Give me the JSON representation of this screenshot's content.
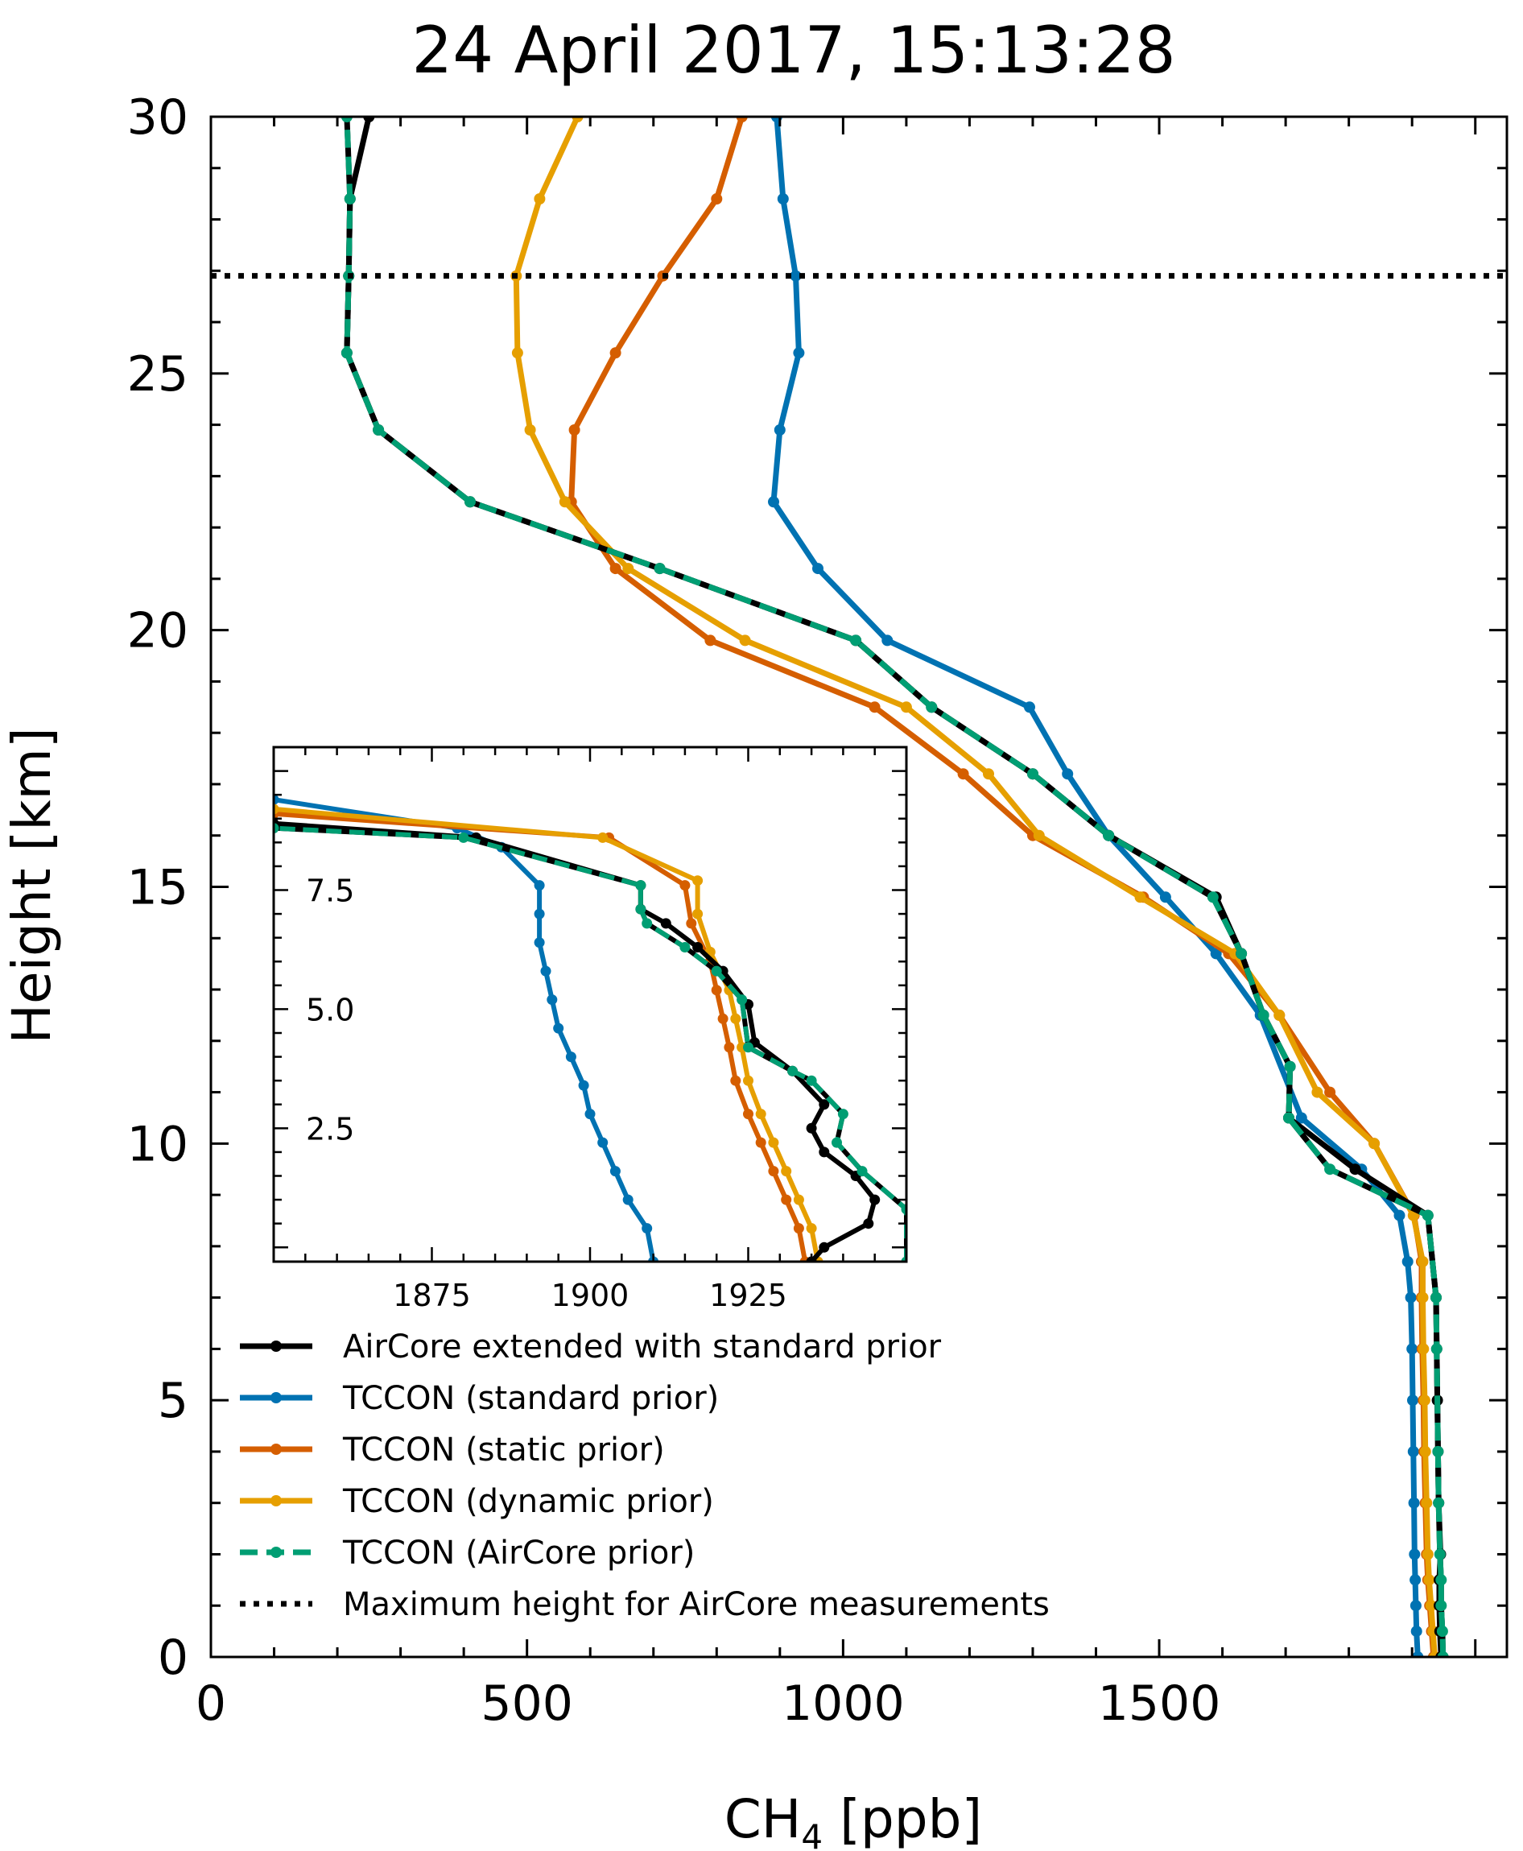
{
  "chart_data": {
    "type": "line",
    "title": "24 April 2017, 15:13:28",
    "xlabel_main": "CH",
    "xlabel_sub": "4",
    "xlabel_unit": " [ppb]",
    "ylabel": "Height [km]",
    "xlim": [
      0,
      2050
    ],
    "ylim": [
      0,
      30
    ],
    "xticks": [
      "0",
      "500",
      "1000",
      "1500"
    ],
    "xtick_values": [
      0,
      500,
      1000,
      1500
    ],
    "yticks": [
      "0",
      "5",
      "10",
      "15",
      "20",
      "25",
      "30"
    ],
    "ytick_values": [
      0,
      5,
      10,
      15,
      20,
      25,
      30
    ],
    "max_height_line": 26.9,
    "legend_position": "lower-left",
    "colors": {
      "aircore": "#000000",
      "standard": "#0072B2",
      "static": "#D55E00",
      "dynamic": "#E69F00",
      "aircore_prior": "#009E73"
    },
    "series": [
      {
        "id": "aircore",
        "name": "AirCore extended with standard prior",
        "style": "solid",
        "points": [
          [
            1946,
            0
          ],
          [
            1944,
            0.5
          ],
          [
            1943,
            1
          ],
          [
            1943,
            1.5
          ],
          [
            1945,
            2
          ],
          [
            1942,
            3
          ],
          [
            1941,
            4
          ],
          [
            1940,
            5
          ],
          [
            1939,
            6
          ],
          [
            1938,
            7
          ],
          [
            1925,
            8.6
          ],
          [
            1810,
            9.5
          ],
          [
            1705,
            10.5
          ],
          [
            1707,
            11.5
          ],
          [
            1665,
            12.5
          ],
          [
            1630,
            13.7
          ],
          [
            1590,
            14.8
          ],
          [
            1420,
            16
          ],
          [
            1300,
            17.2
          ],
          [
            1140,
            18.5
          ],
          [
            1020,
            19.8
          ],
          [
            710,
            21.2
          ],
          [
            410,
            22.5
          ],
          [
            265,
            23.9
          ],
          [
            215,
            25.4
          ],
          [
            218,
            26.9
          ],
          [
            220,
            28.4
          ],
          [
            250,
            30
          ]
        ]
      },
      {
        "id": "standard",
        "name": "TCCON (standard prior)",
        "style": "solid",
        "points": [
          [
            1909,
            0
          ],
          [
            1907,
            0.5
          ],
          [
            1906,
            1
          ],
          [
            1905,
            1.5
          ],
          [
            1904,
            2
          ],
          [
            1903,
            3
          ],
          [
            1902,
            4
          ],
          [
            1901,
            5
          ],
          [
            1900,
            6
          ],
          [
            1898,
            7
          ],
          [
            1893,
            7.7
          ],
          [
            1880,
            8.6
          ],
          [
            1820,
            9.5
          ],
          [
            1725,
            10.5
          ],
          [
            1660,
            12.5
          ],
          [
            1590,
            13.7
          ],
          [
            1510,
            14.8
          ],
          [
            1420,
            16
          ],
          [
            1355,
            17.2
          ],
          [
            1295,
            18.5
          ],
          [
            1070,
            19.8
          ],
          [
            960,
            21.2
          ],
          [
            890,
            22.5
          ],
          [
            900,
            23.9
          ],
          [
            930,
            25.4
          ],
          [
            925,
            26.9
          ],
          [
            905,
            28.4
          ],
          [
            895,
            30
          ]
        ]
      },
      {
        "id": "static",
        "name": "TCCON (static prior)",
        "style": "solid",
        "points": [
          [
            1934,
            0
          ],
          [
            1931,
            0.5
          ],
          [
            1928,
            1
          ],
          [
            1925,
            1.5
          ],
          [
            1923,
            2
          ],
          [
            1921,
            3
          ],
          [
            1919,
            4
          ],
          [
            1918,
            5
          ],
          [
            1916,
            6
          ],
          [
            1915,
            7
          ],
          [
            1915,
            7.7
          ],
          [
            1903,
            8.6
          ],
          [
            1840,
            10.0
          ],
          [
            1770,
            11
          ],
          [
            1690,
            12.5
          ],
          [
            1610,
            13.7
          ],
          [
            1475,
            14.8
          ],
          [
            1300,
            16
          ],
          [
            1190,
            17.2
          ],
          [
            1050,
            18.5
          ],
          [
            790,
            19.8
          ],
          [
            640,
            21.2
          ],
          [
            570,
            22.5
          ],
          [
            575,
            23.9
          ],
          [
            640,
            25.4
          ],
          [
            715,
            26.9
          ],
          [
            800,
            28.4
          ],
          [
            840,
            30
          ]
        ]
      },
      {
        "id": "dynamic",
        "name": "TCCON (dynamic prior)",
        "style": "solid",
        "points": [
          [
            1936,
            0
          ],
          [
            1933,
            0.5
          ],
          [
            1930,
            1
          ],
          [
            1927,
            1.5
          ],
          [
            1925,
            2
          ],
          [
            1923,
            3
          ],
          [
            1921,
            4
          ],
          [
            1920,
            5
          ],
          [
            1918,
            6
          ],
          [
            1917,
            7
          ],
          [
            1917,
            7.7
          ],
          [
            1902,
            8.6
          ],
          [
            1840,
            10.0
          ],
          [
            1750,
            11
          ],
          [
            1690,
            12.5
          ],
          [
            1620,
            13.7
          ],
          [
            1470,
            14.8
          ],
          [
            1310,
            16
          ],
          [
            1230,
            17.2
          ],
          [
            1100,
            18.5
          ],
          [
            845,
            19.8
          ],
          [
            660,
            21.2
          ],
          [
            560,
            22.5
          ],
          [
            505,
            23.9
          ],
          [
            485,
            25.4
          ],
          [
            483,
            26.9
          ],
          [
            520,
            28.4
          ],
          [
            580,
            30
          ]
        ]
      },
      {
        "id": "aircore_prior",
        "name": "TCCON (AirCore prior)",
        "style": "dashed",
        "points": [
          [
            1949,
            0
          ],
          [
            1948,
            0.5
          ],
          [
            1946,
            1
          ],
          [
            1946,
            1.5
          ],
          [
            1944,
            2
          ],
          [
            1942,
            3
          ],
          [
            1941,
            4
          ],
          [
            1939,
            6
          ],
          [
            1938,
            7
          ],
          [
            1925,
            8.6
          ],
          [
            1770,
            9.5
          ],
          [
            1705,
            10.5
          ],
          [
            1707,
            11.5
          ],
          [
            1665,
            12.5
          ],
          [
            1630,
            13.7
          ],
          [
            1585,
            14.8
          ],
          [
            1420,
            16
          ],
          [
            1300,
            17.2
          ],
          [
            1140,
            18.5
          ],
          [
            1020,
            19.8
          ],
          [
            710,
            21.2
          ],
          [
            410,
            22.5
          ],
          [
            265,
            23.9
          ],
          [
            215,
            25.4
          ],
          [
            218,
            26.9
          ],
          [
            220,
            28.4
          ],
          [
            215,
            30
          ]
        ]
      },
      {
        "id": "maxheight",
        "name": "Maximum height for AirCore measurements",
        "style": "dotted",
        "points": []
      }
    ],
    "inset": {
      "xlim": [
        1850,
        1950
      ],
      "ylim": [
        -0.3,
        10.5
      ],
      "xticks": [
        "1875",
        "1900",
        "1925"
      ],
      "xtick_values": [
        1875,
        1900,
        1925
      ],
      "yticks": [
        "2.5",
        "5.0",
        "7.5"
      ],
      "ytick_values": [
        2.5,
        5.0,
        7.5
      ],
      "series": [
        {
          "id": "aircore",
          "points": [
            [
              1935,
              -0.3
            ],
            [
              1937,
              0
            ],
            [
              1944,
              0.5
            ],
            [
              1945,
              1
            ],
            [
              1942,
              1.5
            ],
            [
              1937,
              2
            ],
            [
              1935,
              2.5
            ],
            [
              1937,
              3
            ],
            [
              1932,
              3.7
            ],
            [
              1926,
              4.3
            ],
            [
              1925,
              5.1
            ],
            [
              1921,
              5.8
            ],
            [
              1917,
              6.3
            ],
            [
              1912,
              6.8
            ],
            [
              1908,
              7.1
            ],
            [
              1908,
              7.6
            ],
            [
              1882,
              8.6
            ],
            [
              1850,
              8.9
            ]
          ]
        },
        {
          "id": "standard",
          "points": [
            [
              1910,
              -0.3
            ],
            [
              1909,
              0.4
            ],
            [
              1906,
              1.0
            ],
            [
              1904,
              1.6
            ],
            [
              1902,
              2.2
            ],
            [
              1900,
              2.8
            ],
            [
              1899,
              3.4
            ],
            [
              1897,
              4.0
            ],
            [
              1895,
              4.6
            ],
            [
              1894,
              5.2
            ],
            [
              1893,
              5.8
            ],
            [
              1892,
              6.4
            ],
            [
              1892,
              7.0
            ],
            [
              1892,
              7.6
            ],
            [
              1886,
              8.4
            ],
            [
              1879,
              8.8
            ],
            [
              1850,
              9.4
            ]
          ]
        },
        {
          "id": "static",
          "points": [
            [
              1934,
              -0.3
            ],
            [
              1933,
              0.4
            ],
            [
              1931,
              1.0
            ],
            [
              1929,
              1.6
            ],
            [
              1927,
              2.2
            ],
            [
              1925,
              2.8
            ],
            [
              1923,
              3.5
            ],
            [
              1922,
              4.2
            ],
            [
              1921,
              4.8
            ],
            [
              1920,
              5.4
            ],
            [
              1919,
              6.0
            ],
            [
              1916,
              6.8
            ],
            [
              1915,
              7.6
            ],
            [
              1903,
              8.6
            ],
            [
              1850,
              9.1
            ]
          ]
        },
        {
          "id": "dynamic",
          "points": [
            [
              1936,
              -0.3
            ],
            [
              1935,
              0.4
            ],
            [
              1933,
              1.0
            ],
            [
              1931,
              1.6
            ],
            [
              1929,
              2.2
            ],
            [
              1927,
              2.8
            ],
            [
              1925,
              3.5
            ],
            [
              1924,
              4.2
            ],
            [
              1923,
              4.8
            ],
            [
              1922,
              5.4
            ],
            [
              1919,
              6.2
            ],
            [
              1917,
              7.0
            ],
            [
              1917,
              7.7
            ],
            [
              1902,
              8.6
            ],
            [
              1850,
              9.2
            ]
          ]
        },
        {
          "id": "aircore_prior",
          "points": [
            [
              1950,
              -0.3
            ],
            [
              1950,
              0.8
            ],
            [
              1943,
              1.6
            ],
            [
              1939,
              2.2
            ],
            [
              1940,
              2.8
            ],
            [
              1935,
              3.5
            ],
            [
              1932,
              3.7
            ],
            [
              1925,
              4.2
            ],
            [
              1924,
              5.2
            ],
            [
              1920,
              5.8
            ],
            [
              1915,
              6.3
            ],
            [
              1909,
              6.8
            ],
            [
              1908,
              7.1
            ],
            [
              1908,
              7.6
            ],
            [
              1880,
              8.6
            ],
            [
              1850,
              8.8
            ]
          ]
        }
      ]
    }
  }
}
